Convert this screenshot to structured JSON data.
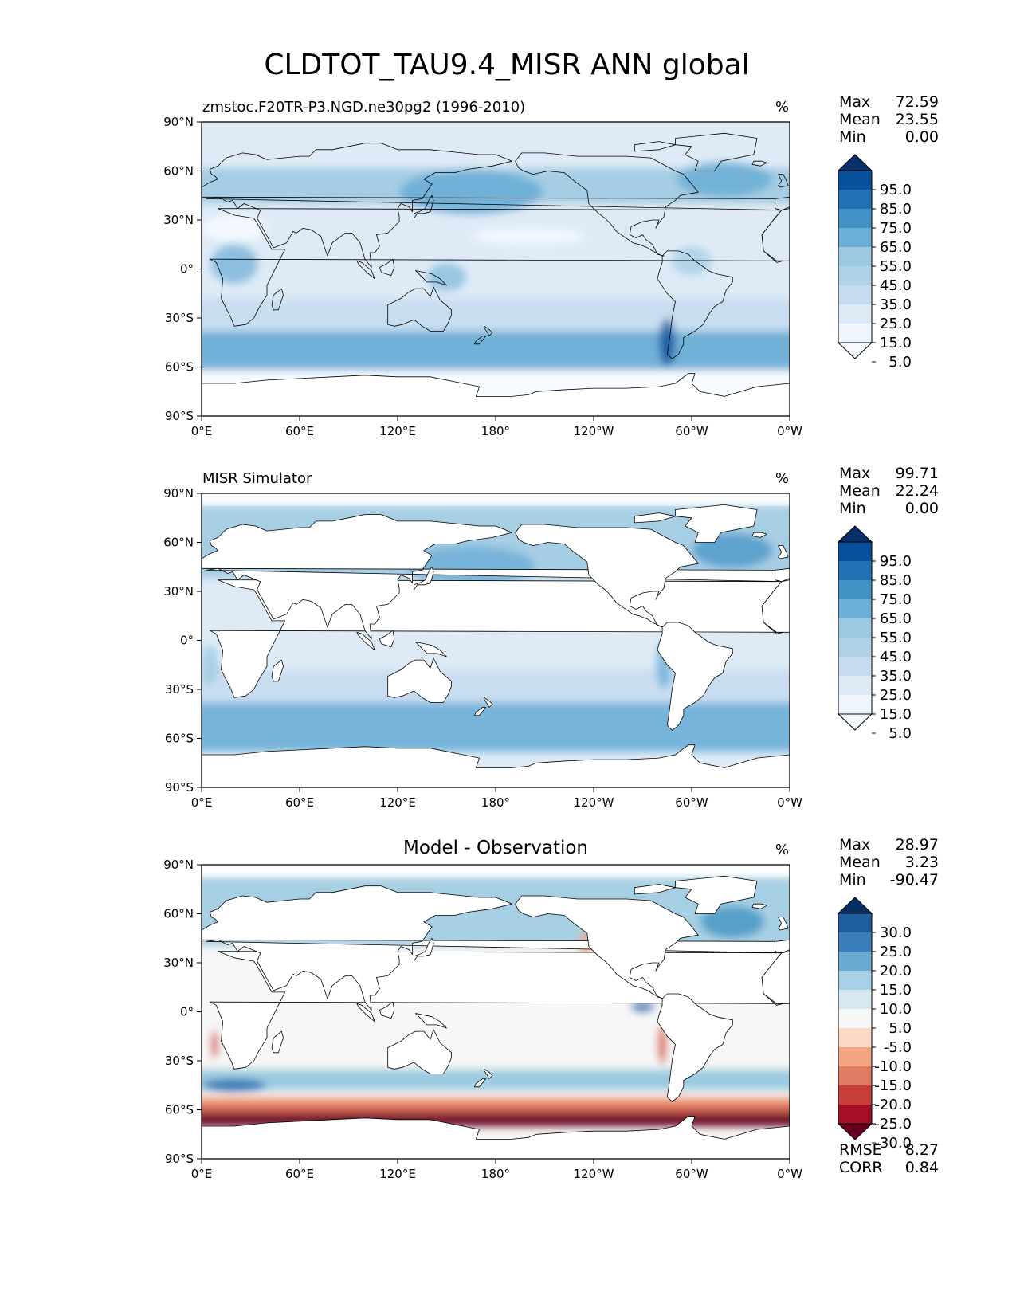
{
  "figure": {
    "title": "CLDTOT_TAU9.4_MISR ANN global"
  },
  "lat_ticks": [
    "90°N",
    "60°N",
    "30°N",
    "0°",
    "30°S",
    "60°S",
    "90°S"
  ],
  "lon_ticks": [
    "0°E",
    "60°E",
    "120°E",
    "180°",
    "120°W",
    "60°W",
    "0°W"
  ],
  "colors": {
    "seq": [
      "#f7fbff",
      "#deebf7",
      "#c6dbef",
      "#9ecae1",
      "#6baed6",
      "#4292c6",
      "#2171b5",
      "#08519c",
      "#08306b"
    ],
    "div": [
      "#67001f",
      "#b2182b",
      "#d6604d",
      "#f4a582",
      "#fddbc7",
      "#f7f7f7",
      "#d1e5f0",
      "#92c5de",
      "#4393c3",
      "#2166ac",
      "#053061"
    ],
    "land_fill": "#ffffff",
    "coast": "#000000"
  },
  "panels": [
    {
      "id": "model",
      "subtitle": "zmstoc.F20TR-P3.NGD.ne30pg2 (1996-2010)",
      "center_title": "",
      "units": "%",
      "stats": [
        {
          "label": "Max",
          "value": "72.59"
        },
        {
          "label": "Mean",
          "value": "23.55"
        },
        {
          "label": "Min",
          "value": "0.00"
        }
      ],
      "colorbar": {
        "ticks": [
          "95.0",
          "85.0",
          "75.0",
          "65.0",
          "55.0",
          "45.0",
          "35.0",
          "25.0",
          "15.0",
          "5.0"
        ],
        "colors": [
          "#f7fbff",
          "#f0f6fd",
          "#deebf7",
          "#c6dbef",
          "#b2d2e8",
          "#9ecae1",
          "#6baed6",
          "#4292c6",
          "#2171b5",
          "#08519c",
          "#08306b"
        ]
      },
      "footer": []
    },
    {
      "id": "obs",
      "subtitle": "MISR Simulator",
      "center_title": "",
      "units": "%",
      "stats": [
        {
          "label": "Max",
          "value": "99.71"
        },
        {
          "label": "Mean",
          "value": "22.24"
        },
        {
          "label": "Min",
          "value": "0.00"
        }
      ],
      "colorbar": {
        "ticks": [
          "95.0",
          "85.0",
          "75.0",
          "65.0",
          "55.0",
          "45.0",
          "35.0",
          "25.0",
          "15.0",
          "5.0"
        ],
        "colors": [
          "#f7fbff",
          "#f0f6fd",
          "#deebf7",
          "#c6dbef",
          "#b2d2e8",
          "#9ecae1",
          "#6baed6",
          "#4292c6",
          "#2171b5",
          "#08519c",
          "#08306b"
        ]
      },
      "footer": []
    },
    {
      "id": "diff",
      "subtitle": "",
      "center_title": "Model - Observation",
      "units": "%",
      "stats": [
        {
          "label": "Max",
          "value": "28.97"
        },
        {
          "label": "Mean",
          "value": "3.23"
        },
        {
          "label": "Min",
          "value": "-90.47"
        }
      ],
      "colorbar": {
        "ticks": [
          "30.0",
          "25.0",
          "20.0",
          "15.0",
          "10.0",
          "5.0",
          "-5.0",
          "-10.0",
          "-15.0",
          "-20.0",
          "-25.0",
          "-30.0"
        ],
        "colors": [
          "#67001f",
          "#a50f26",
          "#c83e3a",
          "#e07b63",
          "#f4a582",
          "#fbd9c6",
          "#f7f7f7",
          "#d6e8f2",
          "#a8d0e6",
          "#6aa9d0",
          "#3a7fba",
          "#1f5f9f",
          "#053061"
        ]
      },
      "footer": [
        {
          "label": "RMSE",
          "value": "8.27"
        },
        {
          "label": "CORR",
          "value": "0.84"
        }
      ]
    }
  ]
}
